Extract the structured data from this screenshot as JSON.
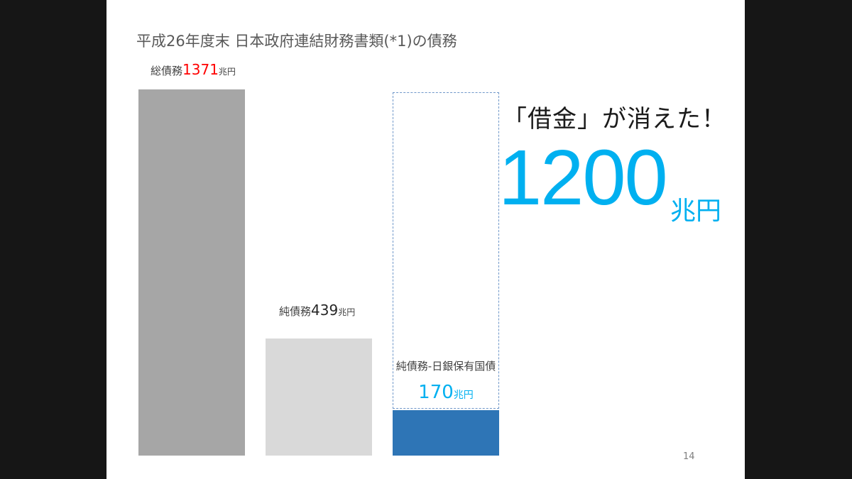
{
  "slide": {
    "title": "平成26年度末 日本政府連結財務書類(*1)の債務",
    "headline": "「借金」が消えた！",
    "big_value": "1200",
    "big_unit": "兆円",
    "page_number": "14"
  },
  "chart_data": {
    "type": "bar",
    "categories": [
      "総債務",
      "純債務",
      "純債務-日銀保有国債"
    ],
    "values": [
      1371,
      439,
      170
    ],
    "ylim": [
      0,
      1400
    ],
    "unit": "兆円",
    "bar_colors": [
      "#a6a6a6",
      "#d9d9d9",
      "#2e75b6"
    ],
    "grid": false,
    "labels": [
      {
        "prefix": "総債務",
        "value": "1371",
        "unit": "兆円",
        "value_color": "#ff0000"
      },
      {
        "prefix": "純債務",
        "value": "439",
        "unit": "兆円",
        "value_color": "#262626"
      },
      {
        "prefix": "純債務-日銀保有国債",
        "value": "170",
        "unit": "兆円",
        "value_color": "#00b0f0"
      }
    ],
    "annotation": {
      "reference_value": 1371,
      "style": "dashed-outline"
    }
  }
}
